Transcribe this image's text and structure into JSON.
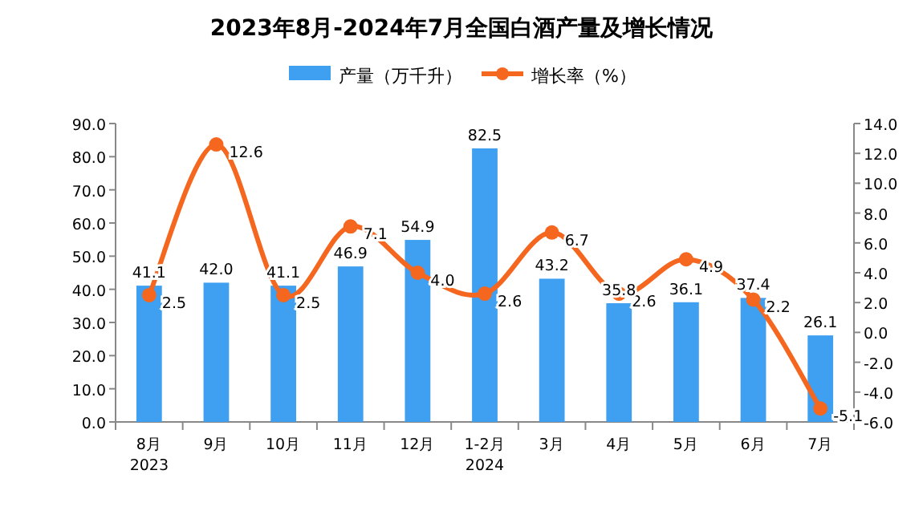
{
  "chart_data": {
    "type": "bar",
    "title": "2023年8月-2024年7月全国白酒产量及增长情况",
    "categories": [
      "8月\n2023",
      "9月",
      "10月",
      "11月",
      "12月",
      "1-2月\n2024",
      "3月",
      "4月",
      "5月",
      "6月",
      "7月"
    ],
    "series": [
      {
        "name": "产量（万千升）",
        "color": "#3f9ff0",
        "values": [
          41.1,
          42.0,
          41.1,
          46.9,
          54.9,
          82.5,
          43.2,
          35.8,
          36.1,
          37.4,
          26.1
        ],
        "value_labels": [
          "41.1",
          "42.0",
          "41.1",
          "46.9",
          "54.9",
          "82.5",
          "43.2",
          "35.8",
          "36.1",
          "37.4",
          "26.1"
        ]
      },
      {
        "name": "增长率（%）",
        "type": "line",
        "axis": "y2",
        "color": "#f5661e",
        "values": [
          2.5,
          12.6,
          2.5,
          7.1,
          4.0,
          2.6,
          6.7,
          2.6,
          4.9,
          2.2,
          -5.1
        ],
        "value_labels": [
          "2.5",
          "12.6",
          "2.5",
          "7.1",
          "4.0",
          "2.6",
          "6.7",
          "2.6",
          "4.9",
          "2.2",
          "-5.1"
        ]
      }
    ],
    "ylim": [
      0,
      90
    ],
    "yticks": [
      {
        "value": 0,
        "label": "0.0"
      },
      {
        "value": 10,
        "label": "10.0"
      },
      {
        "value": 20,
        "label": "20.0"
      },
      {
        "value": 30,
        "label": "30.0"
      },
      {
        "value": 40,
        "label": "40.0"
      },
      {
        "value": 50,
        "label": "50.0"
      },
      {
        "value": 60,
        "label": "60.0"
      },
      {
        "value": 70,
        "label": "70.0"
      },
      {
        "value": 80,
        "label": "80.0"
      },
      {
        "value": 90,
        "label": "90.0"
      }
    ],
    "y2lim": [
      -6,
      14
    ],
    "y2ticks": [
      {
        "value": -6,
        "label": "-6.0"
      },
      {
        "value": -4,
        "label": "-4.0"
      },
      {
        "value": -2,
        "label": "-2.0"
      },
      {
        "value": 0,
        "label": "0.0"
      },
      {
        "value": 2,
        "label": "2.0"
      },
      {
        "value": 4,
        "label": "4.0"
      },
      {
        "value": 6,
        "label": "6.0"
      },
      {
        "value": 8,
        "label": "8.0"
      },
      {
        "value": 10,
        "label": "10.0"
      },
      {
        "value": 12,
        "label": "12.0"
      },
      {
        "value": 14,
        "label": "14.0"
      }
    ],
    "legend": "top",
    "marker": "circle",
    "grid": false
  }
}
